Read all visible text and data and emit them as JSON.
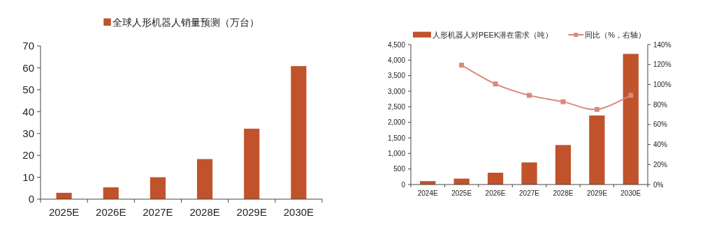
{
  "chart_data": [
    {
      "type": "bar",
      "categories": [
        "2025E",
        "2026E",
        "2027E",
        "2028E",
        "2029E",
        "2030E"
      ],
      "series": [
        {
          "name": "全球人形机器人销量预测（万台）",
          "color": "#c0532b",
          "values": [
            2.9,
            5.4,
            10,
            18.3,
            32.2,
            60.8
          ]
        }
      ],
      "ylim": [
        0,
        70
      ],
      "yticks": [
        0,
        10,
        20,
        30,
        40,
        50,
        60,
        70
      ],
      "legend": "top"
    },
    {
      "type": "bar",
      "categories": [
        "2024E",
        "2025E",
        "2026E",
        "2027E",
        "2028E",
        "2029E",
        "2030E"
      ],
      "series": [
        {
          "name": "人形机器人对PEEK潜在需求（吨）",
          "color": "#c0532b",
          "values": [
            110,
            190,
            380,
            710,
            1270,
            2220,
            4200
          ]
        },
        {
          "name": "同比（%，右轴）",
          "type": "line",
          "axis": "y2",
          "color": "#d9897a",
          "values": [
            null,
            119.4,
            100.6,
            89.2,
            82.8,
            75.1,
            89.2
          ]
        }
      ],
      "ylim": [
        0,
        4500
      ],
      "yticks": [
        0,
        {
          "value": 500,
          "label": "500"
        },
        {
          "value": 1000,
          "label": "1,000"
        },
        {
          "value": 1500,
          "label": "1,500"
        },
        {
          "value": 2000,
          "label": "2,000"
        },
        {
          "value": 2500,
          "label": "2,500"
        },
        {
          "value": 3000,
          "label": "3,000"
        },
        {
          "value": 3500,
          "label": "3,500"
        },
        {
          "value": 4000,
          "label": "4,000"
        },
        {
          "value": 4500,
          "label": "4,500"
        }
      ],
      "y2lim": [
        0,
        140
      ],
      "y2ticks": [
        {
          "value": 0,
          "label": "0%"
        },
        {
          "value": 20,
          "label": "20%"
        },
        {
          "value": 40,
          "label": "40%"
        },
        {
          "value": 60,
          "label": "60%"
        },
        {
          "value": 80,
          "label": "80%"
        },
        {
          "value": 100,
          "label": "100%"
        },
        {
          "value": 120,
          "label": "120%"
        },
        {
          "value": 140,
          "label": "140%"
        }
      ],
      "marker": "square",
      "legend": "top"
    }
  ]
}
